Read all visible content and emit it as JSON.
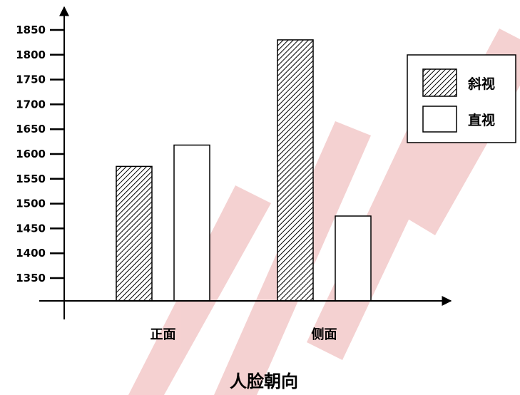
{
  "chart_data": {
    "type": "bar",
    "categories": [
      "正面",
      "侧面"
    ],
    "series": [
      {
        "name": "斜视",
        "values": [
          1575,
          1830
        ],
        "fill": "hatch"
      },
      {
        "name": "直视",
        "values": [
          1618,
          1475
        ],
        "fill": "white"
      }
    ],
    "title": "",
    "xlabel": "人脸朝向",
    "ylabel": "",
    "ylim": [
      1305,
      1865
    ],
    "yticks": [
      1350,
      1400,
      1450,
      1500,
      1550,
      1600,
      1650,
      1700,
      1750,
      1800,
      1850
    ],
    "grid": false,
    "legend_position": "right",
    "colors": {
      "stroke": "#000000",
      "hatch": "#000000",
      "background": "#ffffff"
    }
  }
}
